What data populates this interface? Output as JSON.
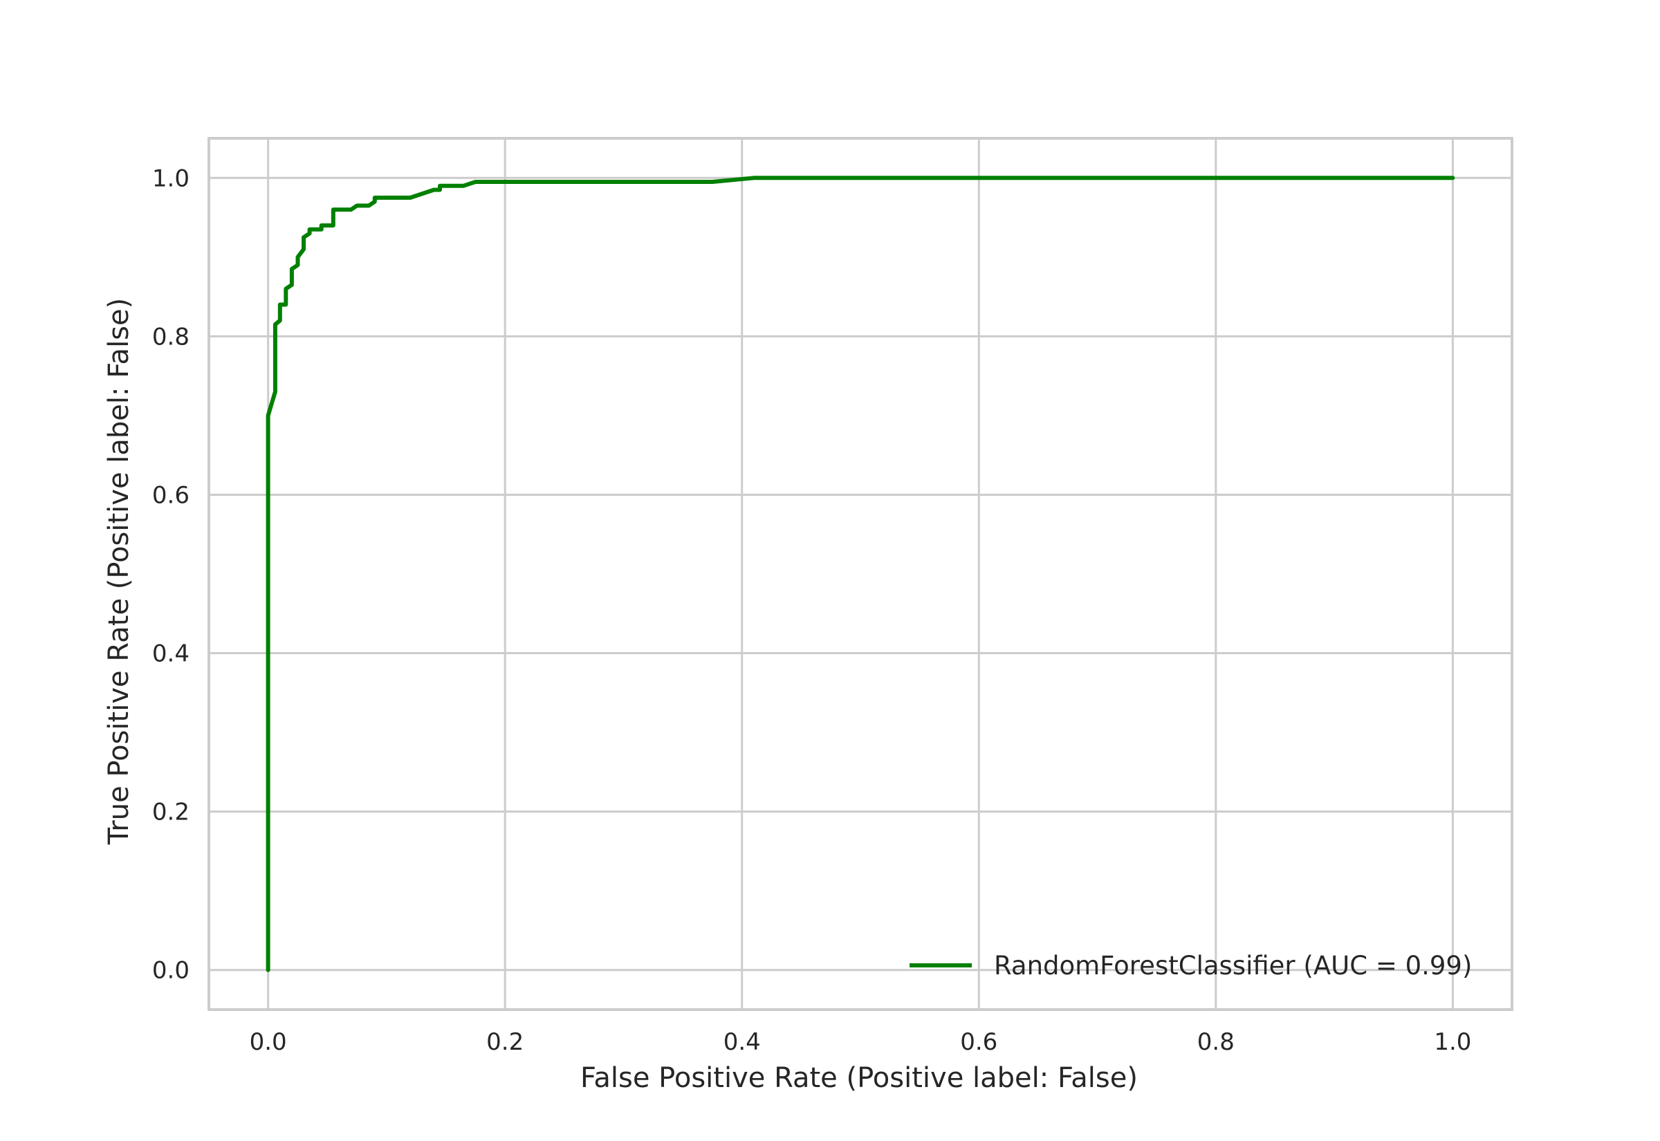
{
  "chart_data": {
    "type": "line",
    "title": "",
    "xlabel": "False Positive Rate (Positive label: False)",
    "ylabel": "True Positive Rate (Positive label: False)",
    "xlim": [
      -0.05,
      1.05
    ],
    "ylim": [
      -0.05,
      1.05
    ],
    "xticks": [
      0.0,
      0.2,
      0.4,
      0.6,
      0.8,
      1.0
    ],
    "xtick_labels": [
      "0.0",
      "0.2",
      "0.4",
      "0.6",
      "0.8",
      "1.0"
    ],
    "yticks": [
      0.0,
      0.2,
      0.4,
      0.6,
      0.8,
      1.0
    ],
    "ytick_labels": [
      "0.0",
      "0.2",
      "0.4",
      "0.6",
      "0.8",
      "1.0"
    ],
    "grid": true,
    "legend_position": "lower-right",
    "series": [
      {
        "name": "RandomForestClassifier (AUC = 0.99)",
        "color": "#008000",
        "x": [
          0.0,
          0.0,
          0.0,
          0.006,
          0.006,
          0.01,
          0.01,
          0.015,
          0.015,
          0.02,
          0.02,
          0.025,
          0.025,
          0.03,
          0.03,
          0.035,
          0.035,
          0.04,
          0.045,
          0.045,
          0.055,
          0.055,
          0.06,
          0.07,
          0.075,
          0.085,
          0.09,
          0.09,
          0.11,
          0.12,
          0.14,
          0.145,
          0.145,
          0.165,
          0.175,
          0.2,
          0.3,
          0.375,
          0.41,
          0.5,
          0.75,
          1.0
        ],
        "y": [
          0.0,
          0.5,
          0.7,
          0.73,
          0.815,
          0.82,
          0.84,
          0.84,
          0.86,
          0.865,
          0.885,
          0.89,
          0.9,
          0.91,
          0.925,
          0.93,
          0.935,
          0.935,
          0.935,
          0.94,
          0.94,
          0.96,
          0.96,
          0.96,
          0.965,
          0.965,
          0.97,
          0.975,
          0.975,
          0.975,
          0.985,
          0.985,
          0.99,
          0.99,
          0.995,
          0.995,
          0.995,
          0.995,
          1.0,
          1.0,
          1.0,
          1.0
        ]
      }
    ]
  }
}
